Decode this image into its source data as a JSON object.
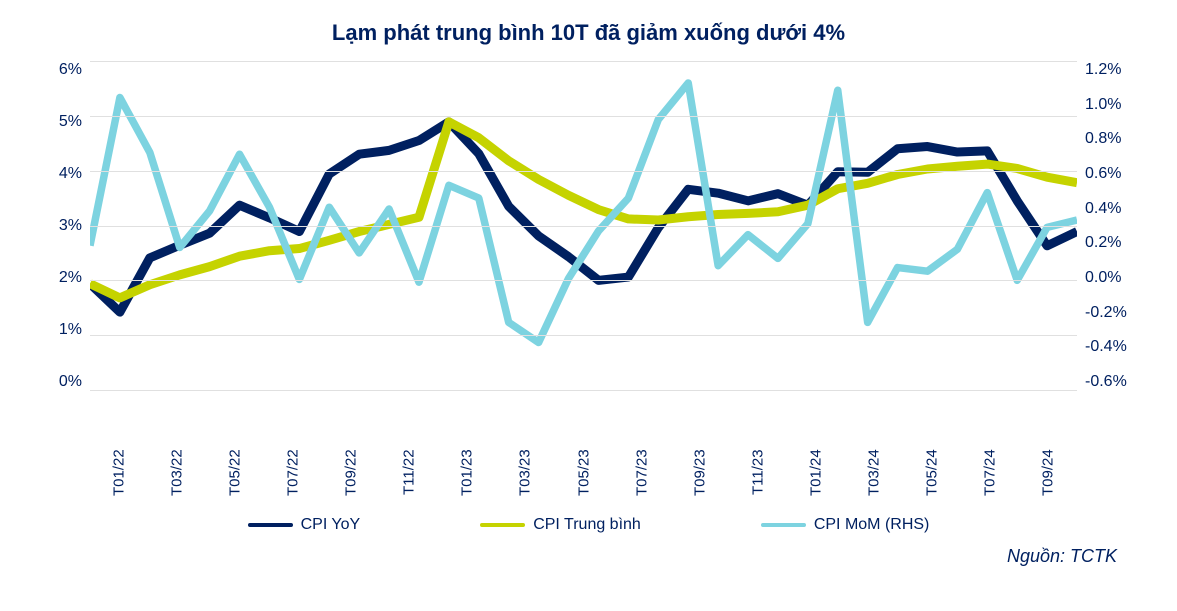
{
  "chart": {
    "title": "Lạm phát trung bình 10T đã giảm xuống dưới 4%",
    "title_fontsize": 22,
    "title_color": "#002060",
    "background_color": "#ffffff",
    "grid_color": "#e0e0e0",
    "axis_text_color": "#002060",
    "axis_fontsize": 16,
    "left_axis": {
      "min": 0,
      "max": 6,
      "step": 1,
      "labels": [
        "6%",
        "5%",
        "4%",
        "3%",
        "2%",
        "1%",
        "0%"
      ]
    },
    "right_axis": {
      "min": -0.6,
      "max": 1.2,
      "step": 0.2,
      "labels": [
        "1.2%",
        "1.0%",
        "0.8%",
        "0.6%",
        "0.4%",
        "0.2%",
        "0.0%",
        "-0.2%",
        "-0.4%",
        "-0.6%"
      ]
    },
    "x_categories": [
      "T01/22",
      "",
      "T03/22",
      "",
      "T05/22",
      "",
      "T07/22",
      "",
      "T09/22",
      "",
      "T11/22",
      "",
      "T01/23",
      "",
      "T03/23",
      "",
      "T05/23",
      "",
      "T07/23",
      "",
      "T09/23",
      "",
      "T11/23",
      "",
      "T01/24",
      "",
      "T03/24",
      "",
      "T05/24",
      "",
      "T07/24",
      "",
      "T09/24",
      ""
    ],
    "series": [
      {
        "name": "CPI YoY",
        "color": "#002060",
        "width": 3,
        "axis": "left",
        "values": [
          1.94,
          1.42,
          2.41,
          2.64,
          2.86,
          3.37,
          3.14,
          2.89,
          3.94,
          4.3,
          4.37,
          4.55,
          4.89,
          4.31,
          3.35,
          2.81,
          2.43,
          2.0,
          2.06,
          2.96,
          3.66,
          3.59,
          3.45,
          3.58,
          3.37,
          3.98,
          3.97,
          4.4,
          4.44,
          4.34,
          4.36,
          3.45,
          2.63,
          2.89
        ]
      },
      {
        "name": "CPI Trung bình",
        "color": "#c5d300",
        "width": 3,
        "axis": "left",
        "values": [
          1.94,
          1.68,
          1.92,
          2.1,
          2.25,
          2.44,
          2.54,
          2.58,
          2.73,
          2.89,
          3.02,
          3.15,
          4.89,
          4.6,
          4.18,
          3.84,
          3.55,
          3.29,
          3.12,
          3.1,
          3.16,
          3.2,
          3.22,
          3.25,
          3.37,
          3.67,
          3.77,
          3.93,
          4.03,
          4.08,
          4.12,
          4.04,
          3.88,
          3.78
        ]
      },
      {
        "name": "CPI MoM (RHS)",
        "color": "#7dd3e0",
        "width": 2.5,
        "axis": "right",
        "values": [
          0.19,
          1.0,
          0.7,
          0.18,
          0.38,
          0.69,
          0.4,
          0.005,
          0.4,
          0.15,
          0.39,
          -0.01,
          0.52,
          0.45,
          -0.23,
          -0.34,
          0.01,
          0.27,
          0.45,
          0.88,
          1.08,
          0.08,
          0.25,
          0.12,
          0.31,
          1.04,
          -0.23,
          0.07,
          0.05,
          0.17,
          0.48,
          0.0,
          0.29,
          0.33
        ]
      }
    ],
    "legend": {
      "items": [
        {
          "label": "CPI YoY",
          "color": "#002060"
        },
        {
          "label": "CPI Trung bình",
          "color": "#c5d300"
        },
        {
          "label": "CPI MoM (RHS)",
          "color": "#7dd3e0"
        }
      ]
    },
    "source_label": "Nguồn: TCTK"
  }
}
